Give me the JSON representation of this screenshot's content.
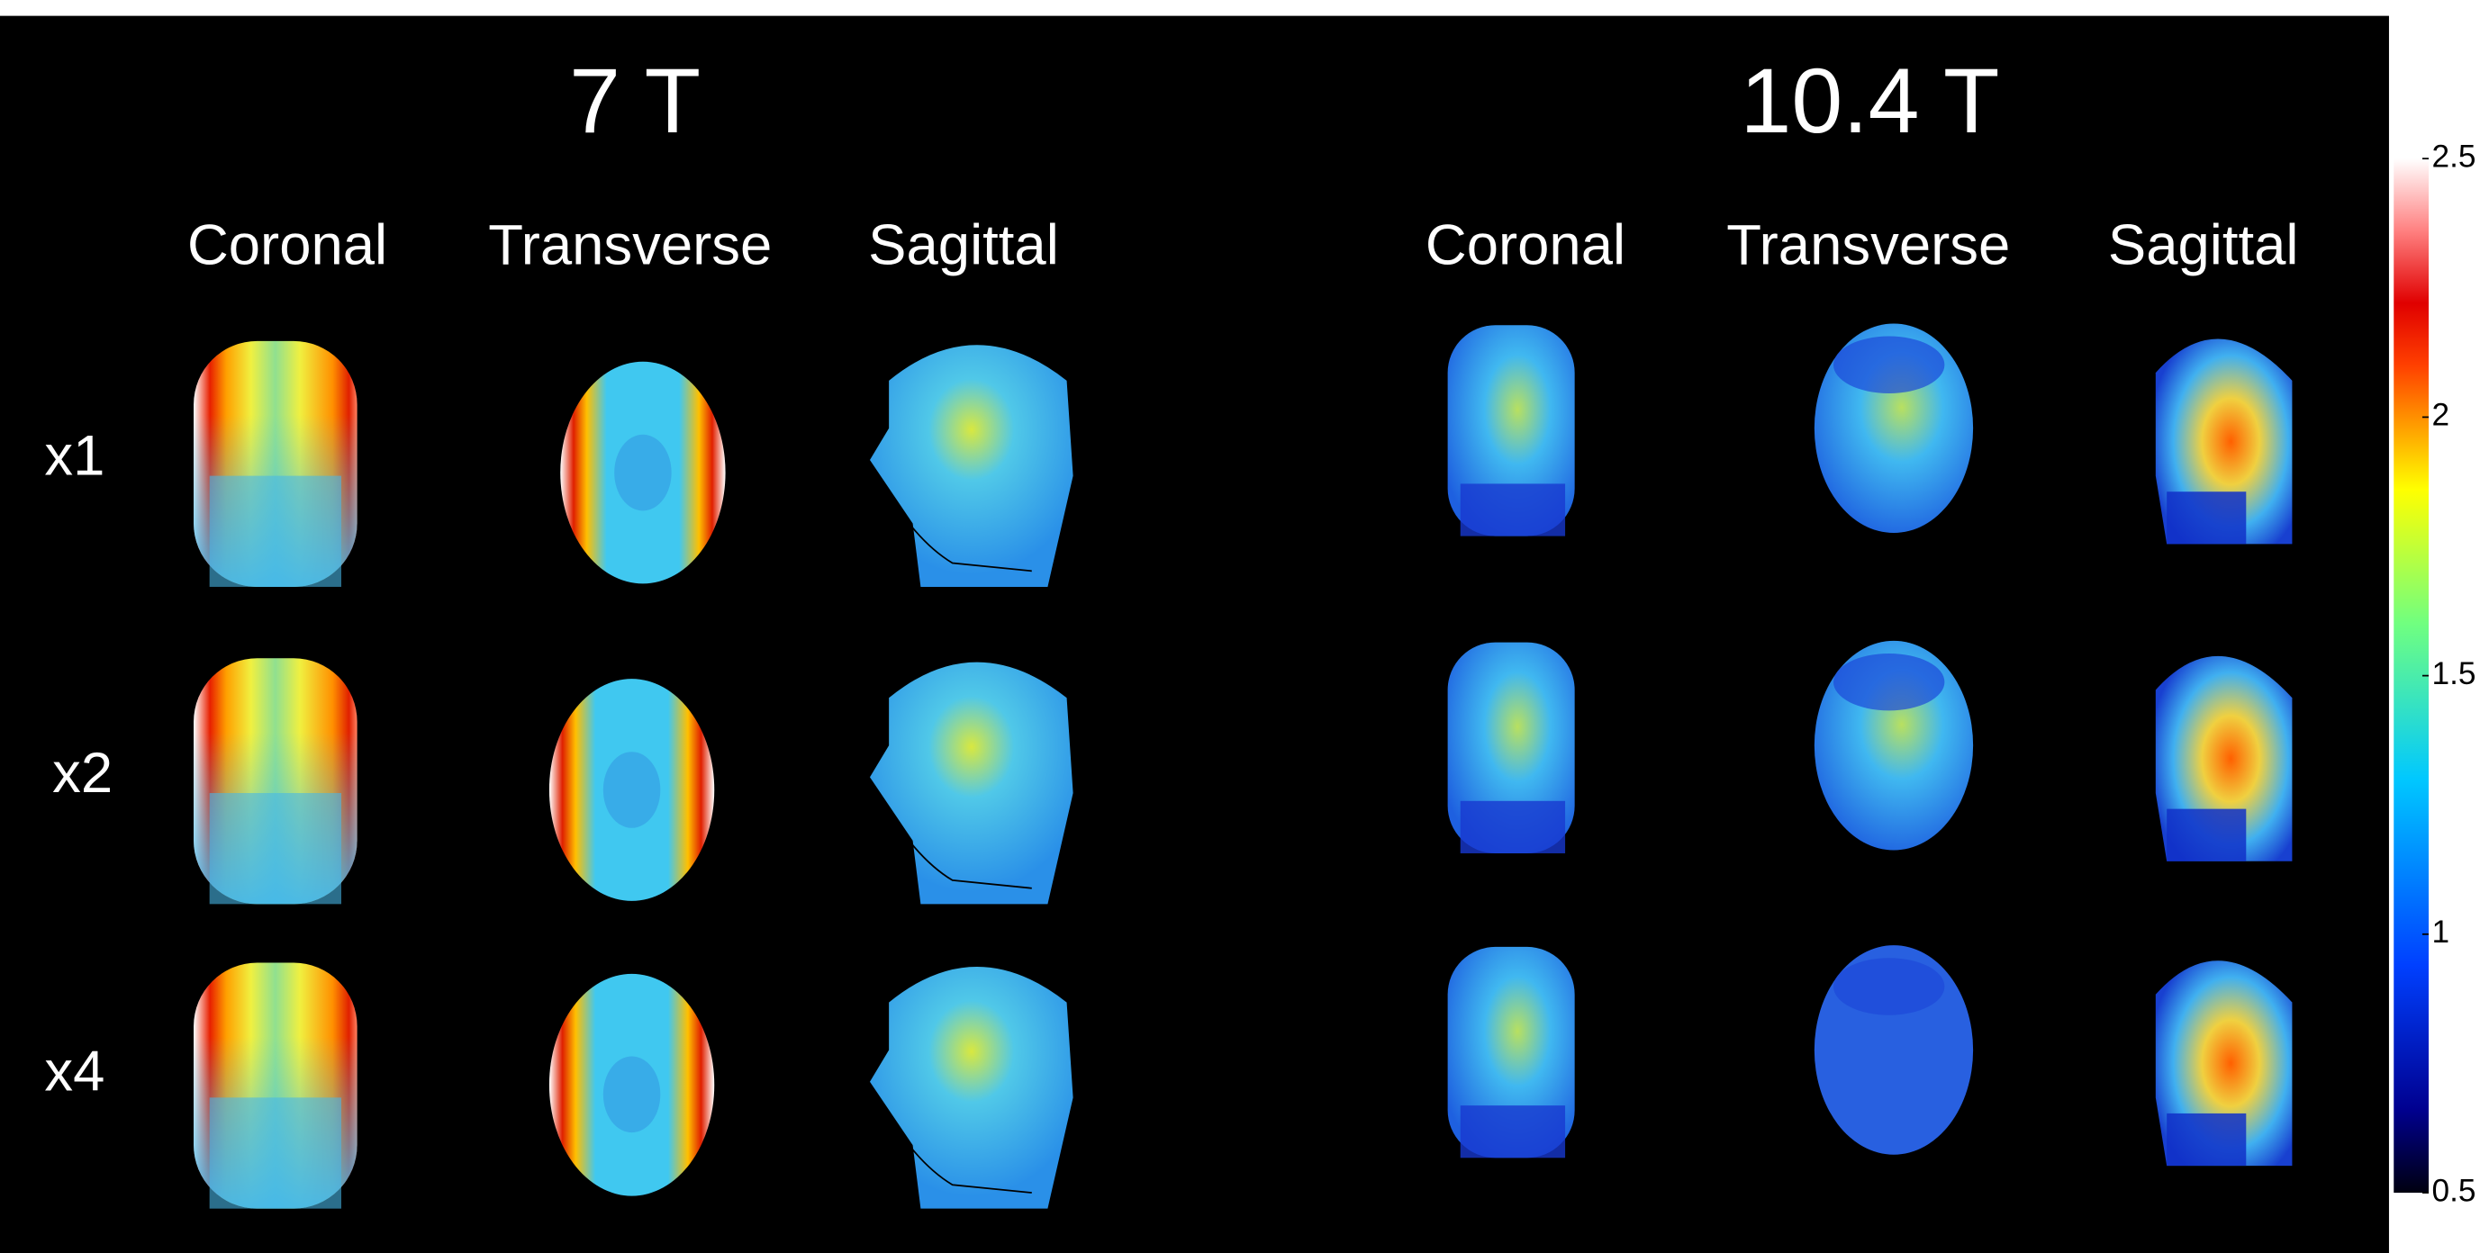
{
  "titles": [
    "7 T",
    "10.4 T"
  ],
  "columns": [
    "Coronal",
    "Transverse",
    "Sagittal",
    "Coronal",
    "Transverse",
    "Sagittal"
  ],
  "rows": [
    "x1",
    "x2",
    "x4"
  ],
  "colorbar": {
    "range": [
      0.5,
      2.5
    ],
    "ticks": [
      0.5,
      1,
      1.5,
      2,
      2.5
    ]
  }
}
